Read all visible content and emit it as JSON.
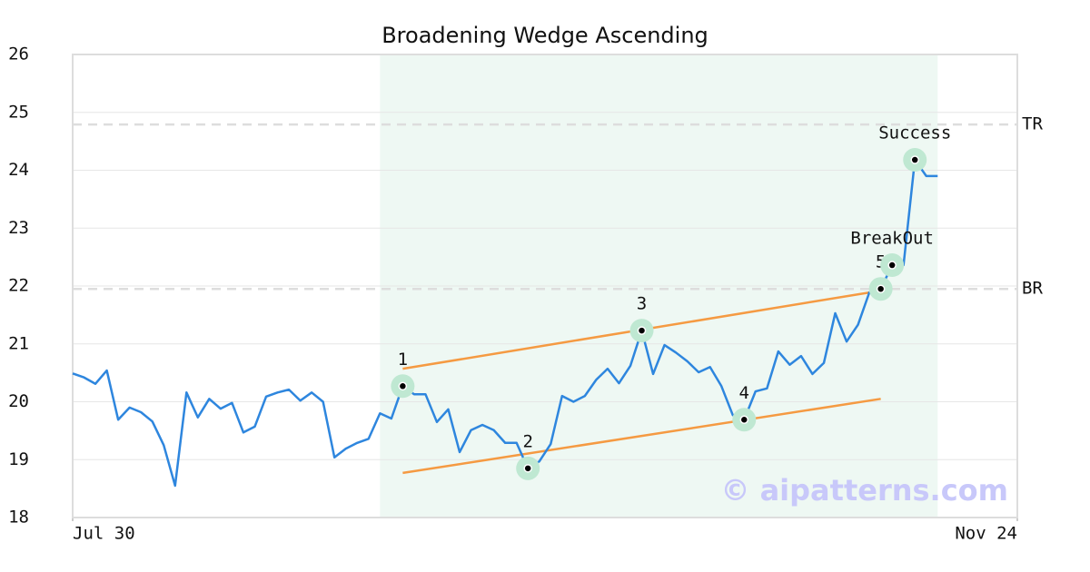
{
  "chart_data": {
    "type": "line",
    "title": "Broadening Wedge Ascending",
    "x": [
      0,
      1,
      2,
      3,
      4,
      5,
      6,
      7,
      8,
      9,
      10,
      11,
      12,
      13,
      14,
      15,
      16,
      17,
      18,
      19,
      20,
      21,
      22,
      23,
      24,
      25,
      26,
      27,
      28,
      29,
      30,
      31,
      32,
      33,
      34,
      35,
      36,
      37,
      38,
      39,
      40,
      41,
      42,
      43,
      44,
      45,
      46,
      47,
      48,
      49,
      50,
      51,
      52,
      53,
      54,
      55,
      56,
      57,
      58,
      59,
      60,
      61,
      62,
      63,
      64,
      65,
      66,
      67,
      68,
      69,
      70,
      71,
      72,
      73,
      74,
      75,
      76
    ],
    "series": [
      {
        "color": "#2e86de",
        "values": [
          20.49,
          20.42,
          20.31,
          20.54,
          19.69,
          19.9,
          19.82,
          19.66,
          19.25,
          18.55,
          20.16,
          19.73,
          20.05,
          19.88,
          19.98,
          19.47,
          19.57,
          20.09,
          20.16,
          20.21,
          20.02,
          20.16,
          20.0,
          19.04,
          19.19,
          19.29,
          19.36,
          19.8,
          19.71,
          20.27,
          20.13,
          20.13,
          19.65,
          19.87,
          19.13,
          19.51,
          19.6,
          19.51,
          19.29,
          19.29,
          18.85,
          18.97,
          19.27,
          20.1,
          20.0,
          20.1,
          20.38,
          20.57,
          20.32,
          20.62,
          21.23,
          20.48,
          20.98,
          20.85,
          20.7,
          20.51,
          20.6,
          20.27,
          19.77,
          19.69,
          20.18,
          20.23,
          20.87,
          20.64,
          20.79,
          20.48,
          20.67,
          21.53,
          21.04,
          21.33,
          21.89,
          21.95,
          22.36,
          22.36,
          24.18,
          23.9,
          23.9
        ]
      }
    ],
    "xlim": [
      0,
      83
    ],
    "xticks": [
      {
        "value": 0,
        "label": "Jul 30"
      },
      {
        "value": 83,
        "label": "Nov 24"
      }
    ],
    "ylim": [
      18,
      26
    ],
    "yticks": [
      18,
      19,
      20,
      21,
      22,
      23,
      24,
      25,
      26
    ],
    "grid": true,
    "highlight_range": [
      27,
      76
    ],
    "highlight_color": "#eef8f3",
    "trendlines": [
      {
        "x": [
          29,
          71
        ],
        "y": [
          20.57,
          21.92
        ],
        "color": "#f59a42"
      },
      {
        "x": [
          29,
          71
        ],
        "y": [
          18.77,
          20.05
        ],
        "color": "#f59a42"
      }
    ],
    "levels": [
      {
        "label": "TR",
        "value": 24.79
      },
      {
        "label": "BR",
        "value": 21.95
      }
    ],
    "points": [
      {
        "index": 29,
        "label": "1"
      },
      {
        "index": 40,
        "label": "2"
      },
      {
        "index": 50,
        "label": "3"
      },
      {
        "index": 59,
        "label": "4"
      },
      {
        "index": 71,
        "label": "5"
      },
      {
        "index": 72,
        "label": "BreakOut"
      },
      {
        "index": 74,
        "label": "Success"
      }
    ],
    "watermark": "© aipatterns.com"
  }
}
